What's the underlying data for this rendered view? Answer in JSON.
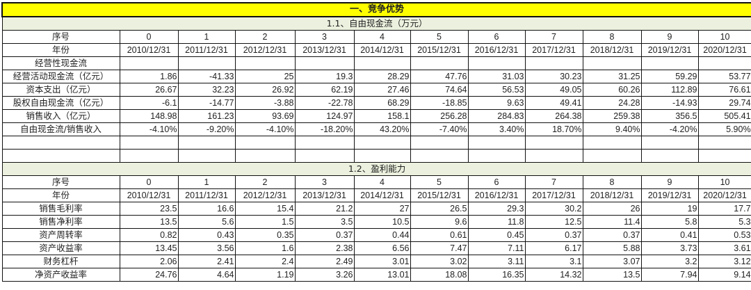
{
  "title": "一、竞争优势",
  "colors": {
    "title_bg": "#ffff00",
    "section_bg": "#ebf1de"
  },
  "sections": [
    {
      "heading": "1.1、自由现金流（万元）",
      "rows": [
        {
          "label": "序号",
          "values": [
            "0",
            "1",
            "2",
            "3",
            "4",
            "5",
            "6",
            "7",
            "8",
            "9",
            "10"
          ],
          "kind": "hdr"
        },
        {
          "label": "年份",
          "values": [
            "2010/12/31",
            "2011/12/31",
            "2012/12/31",
            "2013/12/31",
            "2014/12/31",
            "2015/12/31",
            "2016/12/31",
            "2017/12/31",
            "2018/12/31",
            "2019/12/31",
            "2020/12/31"
          ],
          "kind": "hdr"
        },
        {
          "label": "经营性现金流",
          "values": [
            "",
            "",
            "",
            "",
            "",
            "",
            "",
            "",
            "",
            "",
            ""
          ],
          "kind": "num"
        },
        {
          "label": "经营活动现金流（亿元）",
          "values": [
            "1.86",
            "-41.33",
            "25",
            "19.3",
            "28.29",
            "47.76",
            "31.03",
            "30.23",
            "31.25",
            "59.29",
            "53.77"
          ],
          "kind": "num"
        },
        {
          "label": "资本支出（亿元）",
          "values": [
            "26.67",
            "32.23",
            "26.92",
            "62.19",
            "27.46",
            "74.64",
            "56.53",
            "49.05",
            "60.26",
            "112.89",
            "76.61"
          ],
          "kind": "num"
        },
        {
          "label": "股权自由现金流（亿元）",
          "values": [
            "-6.1",
            "-14.77",
            "-3.88",
            "-22.78",
            "68.29",
            "-18.85",
            "9.63",
            "49.41",
            "24.28",
            "-14.93",
            "29.74"
          ],
          "kind": "num"
        },
        {
          "label": "销售收入（亿元）",
          "values": [
            "148.98",
            "161.23",
            "93.69",
            "124.97",
            "158.1",
            "256.28",
            "284.83",
            "264.38",
            "259.38",
            "356.5",
            "505.41"
          ],
          "kind": "num"
        },
        {
          "label": "自由现金流/销售收入",
          "values": [
            "-4.10%",
            "-9.20%",
            "-4.10%",
            "-18.20%",
            "43.20%",
            "-7.40%",
            "3.40%",
            "18.70%",
            "9.40%",
            "-4.20%",
            "5.90%"
          ],
          "kind": "num"
        },
        {
          "label": "",
          "values": [
            "",
            "",
            "",
            "",
            "",
            "",
            "",
            "",
            "",
            "",
            ""
          ],
          "kind": "num"
        },
        {
          "label": "",
          "values": [
            "",
            "",
            "",
            "",
            "",
            "",
            "",
            "",
            "",
            "",
            ""
          ],
          "kind": "num"
        }
      ]
    },
    {
      "heading": "1.2、盈利能力",
      "rows": [
        {
          "label": "序号",
          "values": [
            "0",
            "1",
            "2",
            "3",
            "4",
            "5",
            "6",
            "7",
            "8",
            "9",
            "10"
          ],
          "kind": "hdr"
        },
        {
          "label": "年份",
          "values": [
            "2010/12/31",
            "2011/12/31",
            "2012/12/31",
            "2013/12/31",
            "2014/12/31",
            "2015/12/31",
            "2016/12/31",
            "2017/12/31",
            "2018/12/31",
            "2019/12/31",
            "2020/12/31"
          ],
          "kind": "hdr"
        },
        {
          "label": "销售毛利率",
          "values": [
            "23.5",
            "16.6",
            "15.4",
            "21.2",
            "27",
            "26.5",
            "29.3",
            "30.2",
            "26",
            "19",
            "17.7"
          ],
          "kind": "num"
        },
        {
          "label": "销售净利率",
          "values": [
            "13.5",
            "5.6",
            "1.5",
            "3.5",
            "10.5",
            "9.6",
            "11.8",
            "12.5",
            "11.4",
            "5.8",
            "5.3"
          ],
          "kind": "num"
        },
        {
          "label": "资产周转率",
          "values": [
            "0.82",
            "0.43",
            "0.35",
            "0.37",
            "0.44",
            "0.61",
            "0.45",
            "0.37",
            "0.37",
            "0.41",
            "0.53"
          ],
          "kind": "num"
        },
        {
          "label": "资产收益率",
          "values": [
            "13.45",
            "3.56",
            "1.6",
            "2.38",
            "6.56",
            "7.47",
            "7.11",
            "6.17",
            "5.88",
            "3.73",
            "3.61"
          ],
          "kind": "num"
        },
        {
          "label": "财务杠杆",
          "values": [
            "2.06",
            "2.41",
            "2.4",
            "2.49",
            "3.01",
            "3.02",
            "3.11",
            "3.1",
            "3.07",
            "3.2",
            "3.12"
          ],
          "kind": "num"
        },
        {
          "label": "净资产收益率",
          "values": [
            "24.76",
            "4.64",
            "1.19",
            "3.26",
            "13.01",
            "18.08",
            "16.35",
            "14.32",
            "13.5",
            "7.94",
            "9.14"
          ],
          "kind": "num"
        }
      ]
    }
  ]
}
